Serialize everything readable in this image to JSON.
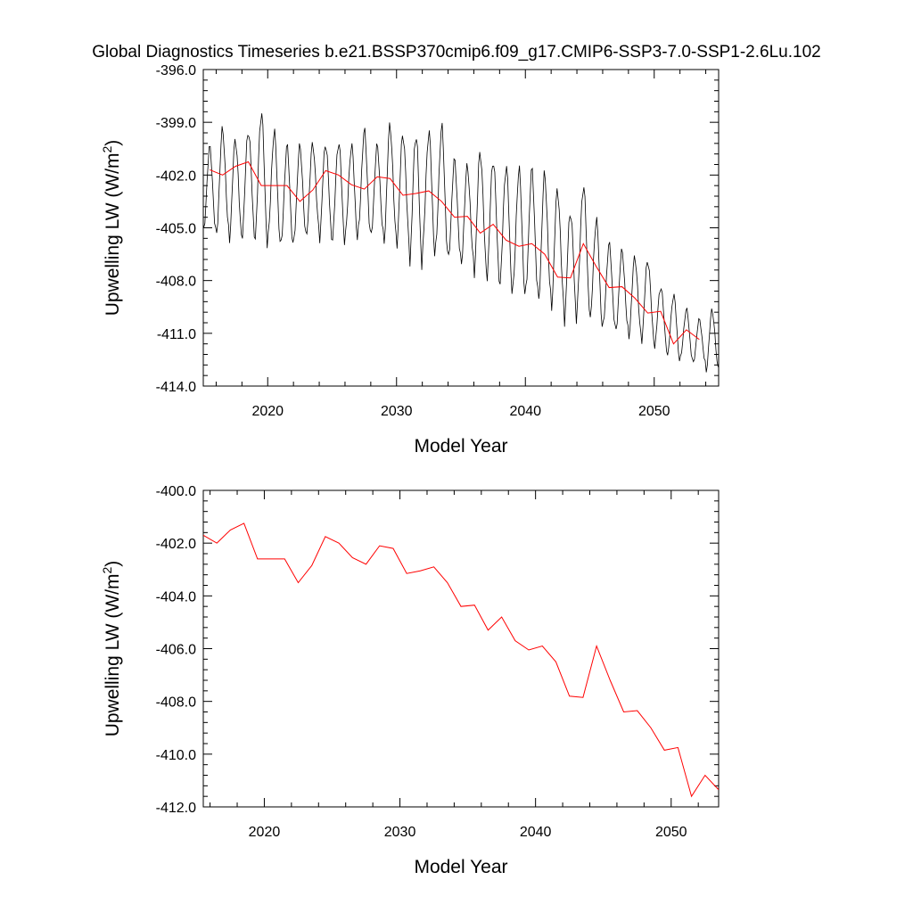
{
  "title": "Global Diagnostics Timeseries b.e21.BSSP370cmip6.f09_g17.CMIP6-SSP3-7.0-SSP1-2.6Lu.102",
  "chart_data": [
    {
      "type": "line",
      "xlabel": "Model Year",
      "ylabel": "Upwelling LW (W/m²)",
      "ylabel_parts": {
        "text": "Upwelling LW (W/m",
        "sup": "2",
        "close": ")"
      },
      "xlim": [
        2015,
        2055
      ],
      "ylim": [
        -414.0,
        -396.0
      ],
      "x_ticks": [
        2020,
        2030,
        2040,
        2050
      ],
      "x_tick_labels": [
        "2020",
        "2030",
        "2040",
        "2050"
      ],
      "y_ticks": [
        -396.0,
        -399.0,
        -402.0,
        -405.0,
        -408.0,
        -411.0,
        -414.0
      ],
      "y_tick_labels": [
        "-396.0",
        "-399.0",
        "-402.0",
        "-405.0",
        "-408.0",
        "-411.0",
        "-414.0"
      ],
      "grid": false,
      "series": [
        {
          "kind": "monthly",
          "color": "#000000",
          "annual_min": [
            -405.6,
            -405.7,
            -406.0,
            -405.8,
            -406.3,
            -406.1,
            -406.5,
            -406.0,
            -405.5,
            -406.0,
            -406.1,
            -405.9,
            -405.7,
            -405.8,
            -406.2,
            -406.3,
            -407.6,
            -406.8,
            -406.9,
            -407.2,
            -407.4,
            -408.0,
            -408.3,
            -408.9,
            -409.2,
            -409.2,
            -409.6,
            -409.9,
            -410.8,
            -409.8,
            -410.9,
            -411.0,
            -411.2,
            -411.5,
            -411.7,
            -412.1,
            -412.7,
            -412.7,
            -412.9,
            -413.4
          ],
          "annual_max": [
            -400.2,
            -399.1,
            -399.6,
            -399.0,
            -397.9,
            -399.2,
            -400.1,
            -400.1,
            -399.9,
            -399.8,
            -399.7,
            -400.0,
            -399.2,
            -400.1,
            -398.8,
            -399.2,
            -399.1,
            -399.1,
            -398.9,
            -400.9,
            -401.2,
            -400.2,
            -400.6,
            -401.0,
            -401.3,
            -401.4,
            -401.6,
            -402.4,
            -403.6,
            -402.1,
            -404.2,
            -405.7,
            -406.1,
            -406.4,
            -406.5,
            -408.1,
            -408.6,
            -409.5,
            -410.1,
            -409.5
          ]
        },
        {
          "kind": "annual_mean",
          "color": "#ff0000",
          "x": [
            2015.5,
            2016.5,
            2017.5,
            2018.5,
            2019.5,
            2020.5,
            2021.5,
            2022.5,
            2023.5,
            2024.5,
            2025.5,
            2026.5,
            2027.5,
            2028.5,
            2029.5,
            2030.5,
            2031.5,
            2032.5,
            2033.5,
            2034.5,
            2035.5,
            2036.5,
            2037.5,
            2038.5,
            2039.5,
            2040.5,
            2041.5,
            2042.5,
            2043.5,
            2044.5,
            2045.5,
            2046.5,
            2047.5,
            2048.5,
            2049.5,
            2050.5,
            2051.5,
            2052.5,
            2053.5
          ],
          "y": [
            -401.7,
            -402.0,
            -401.5,
            -401.25,
            -402.6,
            -402.6,
            -402.6,
            -403.5,
            -402.85,
            -401.75,
            -402.0,
            -402.55,
            -402.8,
            -402.1,
            -402.2,
            -403.15,
            -403.05,
            -402.9,
            -403.5,
            -404.4,
            -404.35,
            -405.3,
            -404.8,
            -405.7,
            -406.05,
            -405.9,
            -406.5,
            -407.8,
            -407.85,
            -405.9,
            -407.2,
            -408.4,
            -408.35,
            -409.0,
            -409.85,
            -409.75,
            -411.6,
            -410.8,
            -411.35
          ]
        }
      ]
    },
    {
      "type": "line",
      "xlabel": "Model Year",
      "ylabel": "Upwelling LW (W/m²)",
      "ylabel_parts": {
        "text": "Upwelling LW (W/m",
        "sup": "2",
        "close": ")"
      },
      "xlim": [
        2015.5,
        2053.5
      ],
      "ylim": [
        -412.0,
        -400.0
      ],
      "x_ticks": [
        2020,
        2030,
        2040,
        2050
      ],
      "x_tick_labels": [
        "2020",
        "2030",
        "2040",
        "2050"
      ],
      "y_ticks": [
        -400.0,
        -402.0,
        -404.0,
        -406.0,
        -408.0,
        -410.0,
        -412.0
      ],
      "y_tick_labels": [
        "-400.0",
        "-402.0",
        "-404.0",
        "-406.0",
        "-408.0",
        "-410.0",
        "-412.0"
      ],
      "grid": false,
      "series": [
        {
          "kind": "annual_mean",
          "color": "#ff0000",
          "x": [
            2015.5,
            2016.5,
            2017.5,
            2018.5,
            2019.5,
            2020.5,
            2021.5,
            2022.5,
            2023.5,
            2024.5,
            2025.5,
            2026.5,
            2027.5,
            2028.5,
            2029.5,
            2030.5,
            2031.5,
            2032.5,
            2033.5,
            2034.5,
            2035.5,
            2036.5,
            2037.5,
            2038.5,
            2039.5,
            2040.5,
            2041.5,
            2042.5,
            2043.5,
            2044.5,
            2045.5,
            2046.5,
            2047.5,
            2048.5,
            2049.5,
            2050.5,
            2051.5,
            2052.5,
            2053.5
          ],
          "y": [
            -401.7,
            -402.0,
            -401.5,
            -401.25,
            -402.6,
            -402.6,
            -402.6,
            -403.5,
            -402.85,
            -401.75,
            -402.0,
            -402.55,
            -402.8,
            -402.1,
            -402.2,
            -403.15,
            -403.05,
            -402.9,
            -403.5,
            -404.4,
            -404.35,
            -405.3,
            -404.8,
            -405.7,
            -406.05,
            -405.9,
            -406.5,
            -407.8,
            -407.85,
            -405.9,
            -407.2,
            -408.4,
            -408.35,
            -409.0,
            -409.85,
            -409.75,
            -411.6,
            -410.8,
            -411.35
          ]
        }
      ]
    }
  ]
}
